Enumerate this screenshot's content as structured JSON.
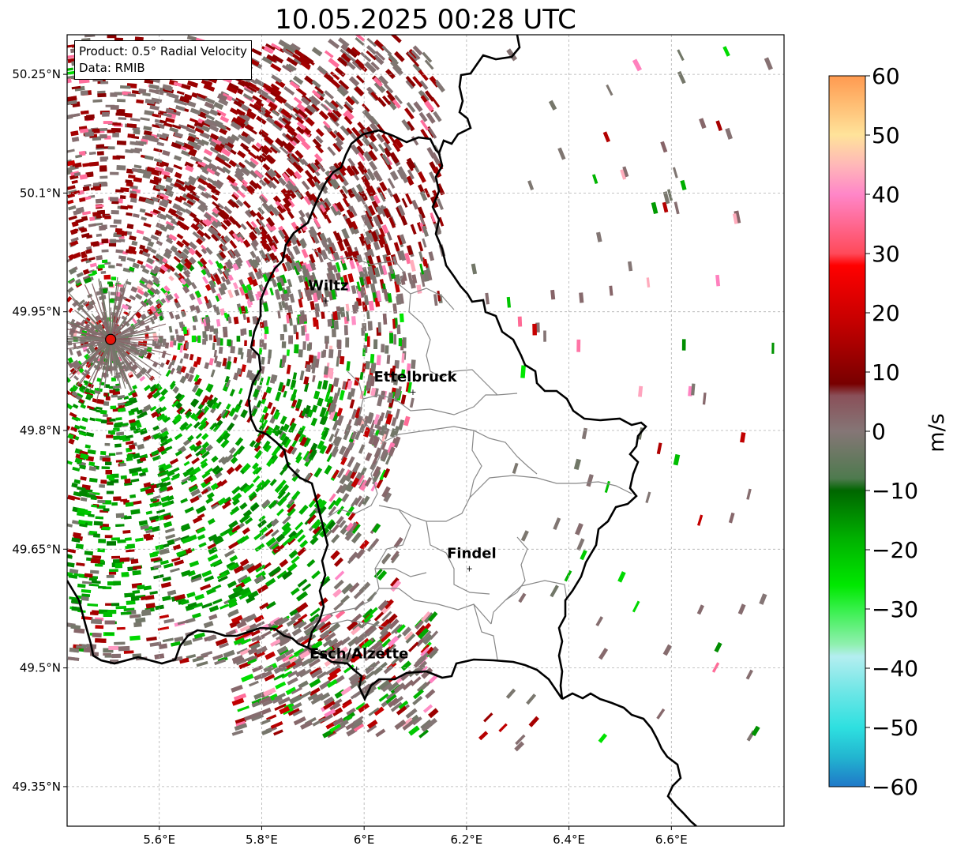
{
  "title": "10.05.2025 00:28 UTC",
  "info_box": {
    "product": "Product: 0.5° Radial Velocity",
    "data": "Data: RMIB"
  },
  "map": {
    "lon_range": [
      5.42,
      6.82
    ],
    "lat_range": [
      49.3,
      50.3
    ],
    "x_ticks": [
      {
        "value": 5.6,
        "label": "5.6°E"
      },
      {
        "value": 5.8,
        "label": "5.8°E"
      },
      {
        "value": 6.0,
        "label": "6°E"
      },
      {
        "value": 6.2,
        "label": "6.2°E"
      },
      {
        "value": 6.4,
        "label": "6.4°E"
      },
      {
        "value": 6.6,
        "label": "6.6°E"
      }
    ],
    "y_ticks": [
      {
        "value": 50.25,
        "label": "50.25°N"
      },
      {
        "value": 50.1,
        "label": "50.1°N"
      },
      {
        "value": 49.95,
        "label": "49.95°N"
      },
      {
        "value": 49.8,
        "label": "49.8°N"
      },
      {
        "value": 49.65,
        "label": "49.65°N"
      },
      {
        "value": 49.5,
        "label": "49.5°N"
      },
      {
        "value": 49.35,
        "label": "49.35°N"
      }
    ],
    "gridlines": true,
    "radar_site": {
      "lon": 5.505,
      "lat": 49.915,
      "color": "#e8140a"
    },
    "cities": [
      {
        "name": "Wiltz",
        "lon": 5.93,
        "lat": 49.965
      },
      {
        "name": "Ettelbruck",
        "lon": 6.1,
        "lat": 49.85
      },
      {
        "name": "Findel",
        "lon": 6.21,
        "lat": 49.627
      },
      {
        "name": "Esch/Alzette",
        "lon": 5.99,
        "lat": 49.5
      }
    ]
  },
  "colorbar": {
    "min": -60,
    "max": 60,
    "tick_labels": [
      "60",
      "50",
      "40",
      "30",
      "20",
      "10",
      "0",
      "−10",
      "−20",
      "−30",
      "−40",
      "−50",
      "−60"
    ],
    "tick_values": [
      60,
      50,
      40,
      30,
      20,
      10,
      0,
      -10,
      -20,
      -30,
      -40,
      -50,
      -60
    ],
    "unit_label": "m/s",
    "stops": [
      {
        "v": -60,
        "c": "#1f78c8"
      },
      {
        "v": -55,
        "c": "#22b5d0"
      },
      {
        "v": -50,
        "c": "#2ee0e0"
      },
      {
        "v": -44,
        "c": "#6de6e6"
      },
      {
        "v": -38,
        "c": "#b4eef0"
      },
      {
        "v": -36,
        "c": "#90f0b0"
      },
      {
        "v": -30,
        "c": "#36f04a"
      },
      {
        "v": -26,
        "c": "#00e800"
      },
      {
        "v": -18,
        "c": "#00b000"
      },
      {
        "v": -10,
        "c": "#006600"
      },
      {
        "v": -8,
        "c": "#4e7a4e"
      },
      {
        "v": 0,
        "c": "#857676"
      },
      {
        "v": 6,
        "c": "#8a5059"
      },
      {
        "v": 8,
        "c": "#780000"
      },
      {
        "v": 18,
        "c": "#c20000"
      },
      {
        "v": 28,
        "c": "#ff0000"
      },
      {
        "v": 30,
        "c": "#ff4a5a"
      },
      {
        "v": 40,
        "c": "#ff86c8"
      },
      {
        "v": 45,
        "c": "#ffb8b8"
      },
      {
        "v": 50,
        "c": "#ffe39a"
      },
      {
        "v": 60,
        "c": "#ff9a50"
      }
    ]
  }
}
